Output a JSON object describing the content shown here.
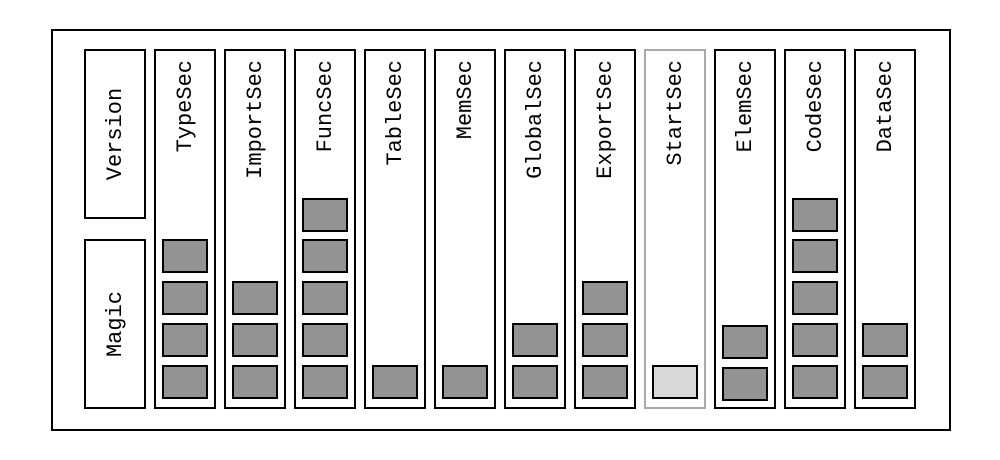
{
  "header": {
    "version": "Version",
    "magic": "Magic"
  },
  "sections": [
    "TypeSec",
    "ImportSec",
    "FuncSec",
    "TableSec",
    "MemSec",
    "GlobalSec",
    "ExportSec",
    "StartSec",
    "ElemSec",
    "CodeSec",
    "DataSec"
  ]
}
